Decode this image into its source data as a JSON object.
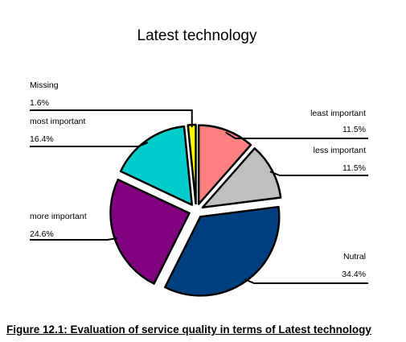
{
  "chart_data": {
    "type": "pie",
    "title": "Latest technology",
    "caption": "Figure 12.1: Evaluation of service quality in terms of Latest technology",
    "slices": [
      {
        "label": "least important",
        "value": 11.5,
        "display": "11.5%",
        "color": "#ff8080"
      },
      {
        "label": "less important",
        "value": 11.5,
        "display": "11.5%",
        "color": "#c0c0c0"
      },
      {
        "label": "Nutral",
        "value": 34.4,
        "display": "34.4%",
        "color": "#004080"
      },
      {
        "label": "more important",
        "value": 24.6,
        "display": "24.6%",
        "color": "#800080"
      },
      {
        "label": "most important",
        "value": 16.4,
        "display": "16.4%",
        "color": "#00cccc"
      },
      {
        "label": "Missing",
        "value": 1.6,
        "display": "1.6%",
        "color": "#ffff00"
      }
    ],
    "legend": "none",
    "data_labels": "leader-lines"
  }
}
